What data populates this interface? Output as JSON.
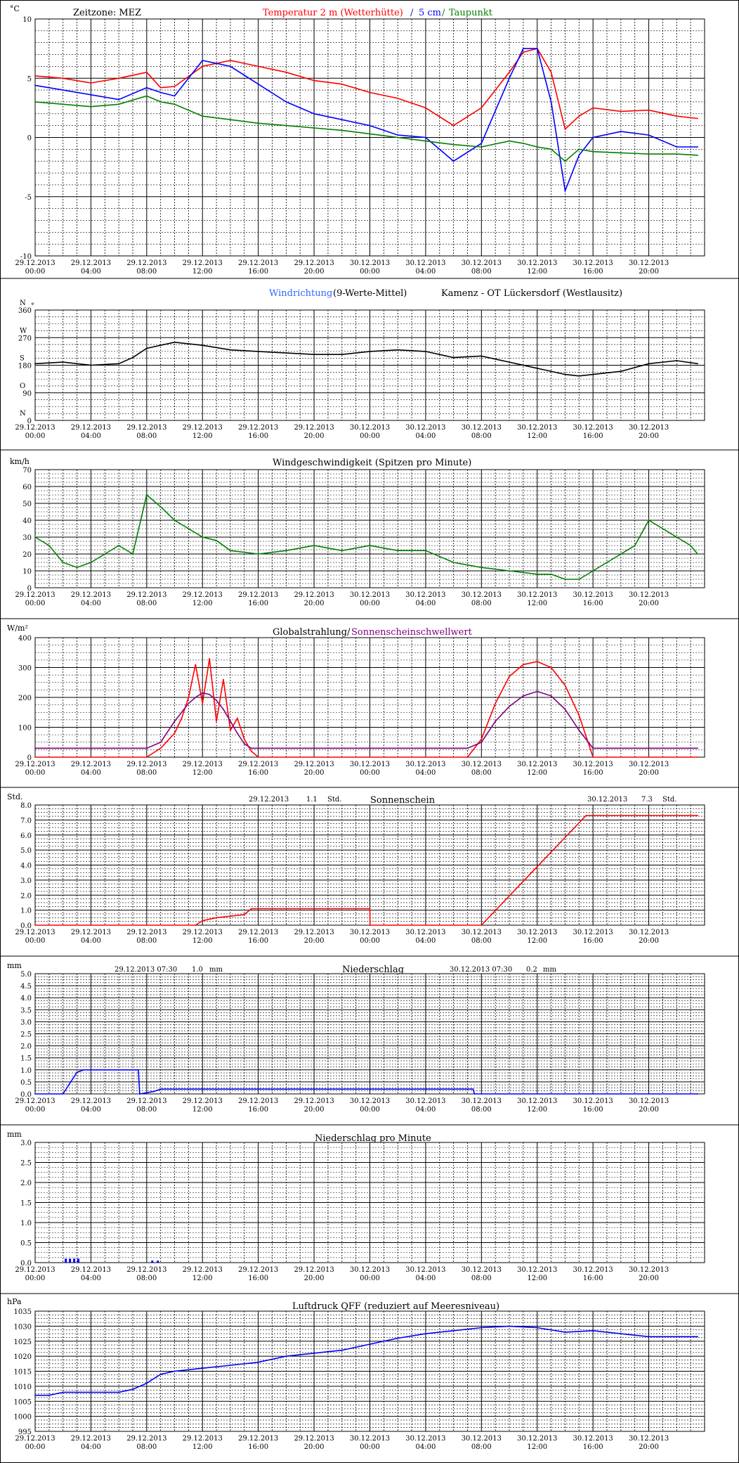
{
  "colors": {
    "red": "#ff0000",
    "blue": "#0000ff",
    "lightblue": "#3366ff",
    "green": "#008000",
    "purple": "#800080",
    "black": "#000000",
    "grid": "#000000"
  },
  "x_labels": [
    [
      "29.12.2013",
      "00:00"
    ],
    [
      "29.12.2013",
      "04:00"
    ],
    [
      "29.12.2013",
      "08:00"
    ],
    [
      "29.12.2013",
      "12:00"
    ],
    [
      "29.12.2013",
      "16:00"
    ],
    [
      "29.12.2013",
      "20:00"
    ],
    [
      "30.12.2013",
      "00:00"
    ],
    [
      "30.12.2013",
      "04:00"
    ],
    [
      "30.12.2013",
      "08:00"
    ],
    [
      "30.12.2013",
      "12:00"
    ],
    [
      "30.12.2013",
      "16:00"
    ],
    [
      "30.12.2013",
      "20:00"
    ]
  ],
  "header_labels": {
    "zeitzone": "Zeitzone: MEZ",
    "temp_title": "Temperatur 2 m (Wetterhütte)",
    "sep1": "/",
    "soil_title": "5 cm",
    "sep2": "/",
    "dew_title": "Taupunkt",
    "wind_dir_title": "Windrichtung",
    "wind_dir_suffix": "(9-Werte-Mittel)",
    "station": "Kamenz - OT Lückersdorf (Westlausitz)",
    "wind_speed_title": "Windgeschwindigkeit (Spitzen pro Minute)",
    "global_title": "Globalstrahlung/",
    "sun_threshold": "Sonnenscheinschwellwert",
    "sunshine_title": "Sonnenschein",
    "sunshine_day1": "29.12.2013",
    "sunshine_val1": "1.1",
    "sunshine_unit1": "Std.",
    "sunshine_day2": "30.12.2013",
    "sunshine_val2": "7.3",
    "sunshine_unit2": "Std.",
    "precip_title": "Niederschlag",
    "precip_day1": "29.12.2013 07:30",
    "precip_val1": "1.0",
    "precip_unit1": "mm",
    "precip_day2": "30.12.2013 07:30",
    "precip_val2": "0.2",
    "precip_unit2": "mm",
    "precip_min_title": "Niederschlag pro Minute",
    "pressure_title": "Luftdruck QFF (reduziert auf Meeresniveau)"
  },
  "chart_data": [
    {
      "type": "line",
      "id": "temperature",
      "unit": "°C",
      "ylim": [
        -10,
        10
      ],
      "yticks": [
        -10,
        -5,
        0,
        5,
        10
      ],
      "x_hours": [
        0,
        2,
        4,
        6,
        8,
        9,
        10,
        12,
        14,
        16,
        18,
        20,
        22,
        24,
        26,
        28,
        30,
        32,
        34,
        35,
        36,
        37,
        38,
        39,
        40,
        42,
        44,
        46,
        47.5
      ],
      "series": [
        {
          "name": "Temperatur 2 m (Wetterhütte)",
          "color": "#ff0000",
          "values": [
            5.2,
            5.0,
            4.6,
            5.0,
            5.5,
            4.2,
            4.3,
            6.0,
            6.5,
            6.0,
            5.5,
            4.8,
            4.5,
            3.8,
            3.3,
            2.5,
            1.0,
            2.5,
            5.5,
            7.2,
            7.5,
            5.5,
            0.7,
            1.8,
            2.5,
            2.2,
            2.3,
            1.8,
            1.6
          ]
        },
        {
          "name": "5 cm",
          "color": "#0000ff",
          "values": [
            4.4,
            4.0,
            3.6,
            3.2,
            4.2,
            3.8,
            3.5,
            6.5,
            6.0,
            4.5,
            3.0,
            2.0,
            1.5,
            1.0,
            0.2,
            0.0,
            -2.0,
            -0.5,
            5.0,
            7.5,
            7.5,
            3.0,
            -4.5,
            -1.5,
            0.0,
            0.5,
            0.2,
            -0.8,
            -0.8
          ]
        },
        {
          "name": "Taupunkt",
          "color": "#008000",
          "values": [
            3.0,
            2.8,
            2.6,
            2.8,
            3.5,
            3.0,
            2.8,
            1.8,
            1.5,
            1.2,
            1.0,
            0.8,
            0.6,
            0.3,
            0.0,
            -0.3,
            -0.6,
            -0.8,
            -0.3,
            -0.5,
            -0.8,
            -1.0,
            -2.0,
            -1.0,
            -1.2,
            -1.3,
            -1.4,
            -1.4,
            -1.5
          ]
        }
      ]
    },
    {
      "type": "line",
      "id": "wind_direction",
      "unit": "°",
      "ylim": [
        0,
        360
      ],
      "yticks": [
        0,
        90,
        180,
        270,
        360
      ],
      "x_hours": [
        0,
        2,
        4,
        6,
        7,
        8,
        10,
        12,
        14,
        16,
        18,
        20,
        22,
        24,
        26,
        28,
        30,
        32,
        33,
        34,
        36,
        38,
        39,
        40,
        42,
        44,
        46,
        47.5
      ],
      "series": [
        {
          "name": "Windrichtung (9-Werte-Mittel)",
          "color": "#000000",
          "values": [
            185,
            190,
            180,
            185,
            205,
            235,
            255,
            245,
            230,
            225,
            220,
            215,
            215,
            225,
            230,
            225,
            205,
            210,
            200,
            190,
            170,
            150,
            145,
            150,
            160,
            185,
            195,
            185
          ]
        }
      ]
    },
    {
      "type": "line",
      "id": "wind_speed",
      "unit": "km/h",
      "ylim": [
        0,
        70
      ],
      "yticks": [
        0,
        10,
        20,
        30,
        40,
        50,
        60,
        70
      ],
      "x_hours": [
        0,
        1,
        2,
        3,
        4,
        5,
        6,
        7,
        8,
        9,
        10,
        11,
        12,
        13,
        14,
        16,
        18,
        20,
        22,
        24,
        26,
        28,
        30,
        32,
        34,
        36,
        37,
        38,
        39,
        40,
        41,
        42,
        43,
        44,
        45,
        46,
        47,
        47.5
      ],
      "series": [
        {
          "name": "Windgeschwindigkeit",
          "color": "#008000",
          "values": [
            30,
            25,
            15,
            12,
            15,
            20,
            25,
            20,
            55,
            48,
            40,
            35,
            30,
            28,
            22,
            20,
            22,
            25,
            22,
            25,
            22,
            22,
            15,
            12,
            10,
            8,
            8,
            5,
            5,
            10,
            15,
            20,
            25,
            40,
            35,
            30,
            25,
            20
          ]
        }
      ]
    },
    {
      "type": "line",
      "id": "global_radiation",
      "unit": "W/m²",
      "ylim": [
        0,
        400
      ],
      "yticks": [
        0,
        100,
        200,
        300,
        400
      ],
      "x_hours": [
        0,
        8,
        9,
        10,
        10.5,
        11,
        11.5,
        12,
        12.5,
        13,
        13.5,
        14,
        14.5,
        15,
        15.5,
        16,
        24,
        31,
        32,
        33,
        34,
        35,
        36,
        37,
        38,
        39,
        40,
        47.5
      ],
      "series": [
        {
          "name": "Globalstrahlung",
          "color": "#ff0000",
          "values": [
            0,
            0,
            30,
            80,
            130,
            200,
            310,
            180,
            330,
            120,
            260,
            90,
            130,
            60,
            20,
            0,
            0,
            0,
            60,
            180,
            270,
            310,
            320,
            300,
            240,
            140,
            0,
            0
          ]
        },
        {
          "name": "Sonnenscheinschwellwert",
          "color": "#800080",
          "values": [
            30,
            30,
            50,
            120,
            150,
            180,
            200,
            215,
            210,
            190,
            160,
            120,
            80,
            45,
            30,
            30,
            30,
            30,
            50,
            120,
            170,
            205,
            220,
            205,
            160,
            90,
            30,
            30
          ]
        }
      ]
    },
    {
      "type": "line",
      "id": "sunshine",
      "unit": "Std.",
      "ylim": [
        0,
        8
      ],
      "yticks": [
        0,
        1,
        2,
        3,
        4,
        5,
        6,
        7,
        8
      ],
      "x_hours": [
        0,
        11.5,
        12,
        13,
        14,
        15,
        15.5,
        16,
        24,
        24.01,
        32,
        39.5,
        47.5
      ],
      "series": [
        {
          "name": "Sonnenschein",
          "color": "#ff0000",
          "values": [
            0,
            0,
            0.3,
            0.5,
            0.6,
            0.7,
            1.1,
            1.1,
            1.1,
            0,
            0,
            7.3,
            7.3
          ]
        }
      ]
    },
    {
      "type": "line",
      "id": "precipitation",
      "unit": "mm",
      "ylim": [
        0,
        5
      ],
      "yticks": [
        0,
        0.5,
        1,
        1.5,
        2,
        2.5,
        3,
        3.5,
        4,
        4.5,
        5
      ],
      "x_hours": [
        0,
        2,
        3,
        3.5,
        7.4,
        7.5,
        8.5,
        9,
        31.4,
        31.5,
        47.5
      ],
      "series": [
        {
          "name": "Niederschlag",
          "color": "#0000ff",
          "values": [
            0,
            0,
            0.9,
            1.0,
            1.0,
            0,
            0.1,
            0.2,
            0.2,
            0,
            0
          ]
        }
      ]
    },
    {
      "type": "bar",
      "id": "precipitation_minute",
      "unit": "mm",
      "ylim": [
        0,
        3
      ],
      "yticks": [
        0,
        0.5,
        1,
        1.5,
        2,
        2.5,
        3
      ],
      "x_hours": [
        2.2,
        2.5,
        2.8,
        3.1,
        8.4,
        8.8
      ],
      "series": [
        {
          "name": "Niederschlag pro Minute",
          "color": "#0000ff",
          "values": [
            0.1,
            0.1,
            0.1,
            0.1,
            0.05,
            0.05
          ]
        }
      ]
    },
    {
      "type": "line",
      "id": "pressure",
      "unit": "hPa",
      "ylim": [
        995,
        1035
      ],
      "yticks": [
        995,
        1000,
        1005,
        1010,
        1015,
        1020,
        1025,
        1030,
        1035
      ],
      "x_hours": [
        0,
        1,
        2,
        4,
        6,
        7,
        8,
        9,
        10,
        12,
        14,
        16,
        18,
        20,
        22,
        24,
        26,
        28,
        30,
        32,
        34,
        36,
        38,
        40,
        42,
        44,
        46,
        47.5
      ],
      "series": [
        {
          "name": "Luftdruck QFF",
          "color": "#0000ff",
          "values": [
            1007,
            1007,
            1008,
            1008,
            1008,
            1009,
            1011,
            1014,
            1015,
            1016,
            1017,
            1018,
            1020,
            1021,
            1022,
            1024,
            1026,
            1027.5,
            1028.5,
            1029.5,
            1030,
            1029.5,
            1028,
            1028.5,
            1027.5,
            1026.5,
            1026.5,
            1026.5
          ]
        }
      ]
    }
  ]
}
